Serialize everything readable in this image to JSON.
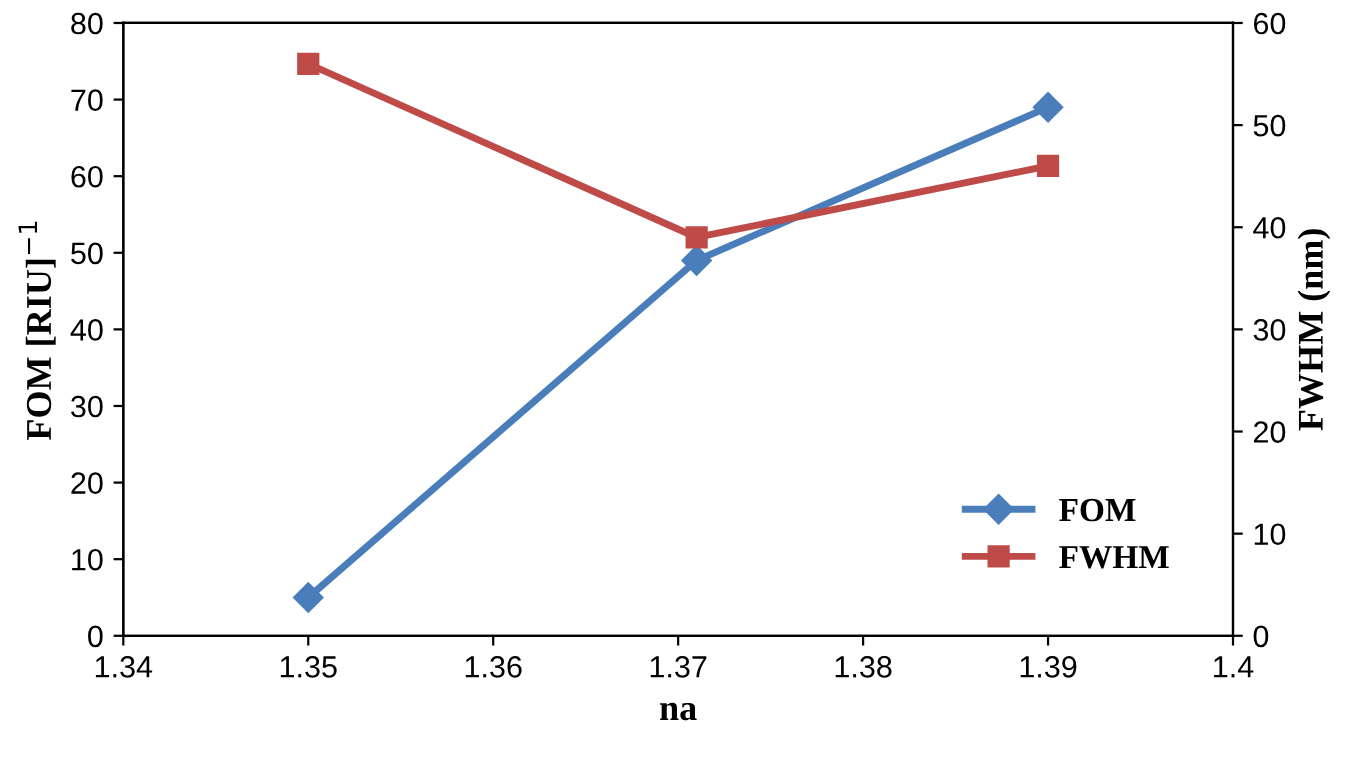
{
  "chart_data": {
    "type": "line",
    "xlabel": "na",
    "ylabel": "FOM [RIU]$^{−1}$",
    "y2label": "FWHM (nm)",
    "xlim": [
      1.34,
      1.4
    ],
    "xticks": [
      {
        "value": 1.34,
        "label": "1.34"
      },
      {
        "value": 1.35,
        "label": "1.35"
      },
      {
        "value": 1.36,
        "label": "1.36"
      },
      {
        "value": 1.37,
        "label": "1.37"
      },
      {
        "value": 1.38,
        "label": "1.38"
      },
      {
        "value": 1.39,
        "label": "1.39"
      },
      {
        "value": 1.4,
        "label": "1.4"
      }
    ],
    "ylim": [
      0,
      80
    ],
    "yticks": [
      0,
      10,
      20,
      30,
      40,
      50,
      60,
      70,
      80
    ],
    "y2lim": [
      0,
      60
    ],
    "y2ticks": [
      0,
      10,
      20,
      30,
      40,
      50,
      60
    ],
    "legend": "bottom right",
    "grid": false,
    "series": [
      {
        "name": "FOM",
        "color": "#4a7ebb",
        "marker": "diamond",
        "x": [
          1.35,
          1.371,
          1.39
        ],
        "values": [
          5,
          49,
          69
        ]
      },
      {
        "name": "FWHM",
        "color": "#be4b48",
        "marker": "square",
        "axis": "y2",
        "x": [
          1.35,
          1.371,
          1.39
        ],
        "values": [
          56,
          39,
          46
        ]
      }
    ]
  }
}
